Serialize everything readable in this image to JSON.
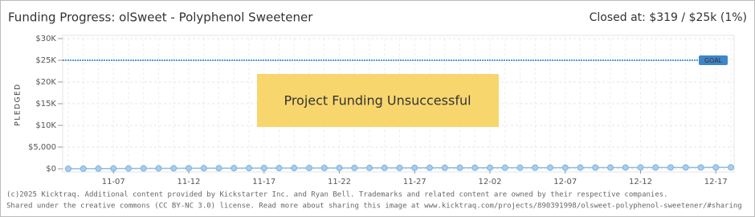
{
  "chart_data": {
    "type": "line",
    "title": "Funding Progress: olSweet - Polyphenol Sweetener",
    "subtitle": "Closed at: $319 / $25k (1%)",
    "y_label": "PLEDGED",
    "annotation": "Project Funding Unsuccessful",
    "goal": {
      "value": 25000,
      "label": "GOAL"
    },
    "notes": [
      "(c)2025 Kicktraq. Additional content provided by Kickstarter Inc. and Ryan Bell. Trademarks and related content are owned by their respective companies.",
      "Shared under the creative commons (CC BY-NC 3.0) license. Read more about sharing this image at www.kicktraq.com/projects/890391998/olsweet-polyphenol-sweetener/#sharing"
    ],
    "categories": [
      null,
      null,
      null,
      "11-07",
      null,
      null,
      null,
      null,
      "11-12",
      null,
      null,
      null,
      null,
      "11-17",
      null,
      null,
      null,
      null,
      "11-22",
      null,
      null,
      null,
      null,
      "11-27",
      null,
      null,
      null,
      null,
      "12-02",
      null,
      null,
      null,
      null,
      "12-07",
      null,
      null,
      null,
      null,
      "12-12",
      null,
      null,
      null,
      null,
      "12-17",
      null
    ],
    "values": [
      0,
      25,
      40,
      60,
      75,
      90,
      100,
      110,
      120,
      130,
      140,
      150,
      155,
      160,
      170,
      175,
      180,
      185,
      190,
      195,
      200,
      205,
      210,
      215,
      220,
      225,
      230,
      235,
      240,
      245,
      250,
      255,
      260,
      265,
      270,
      275,
      280,
      285,
      290,
      295,
      300,
      305,
      310,
      315,
      319
    ],
    "color": "#a9cdea",
    "ylim": [
      0,
      30000
    ],
    "yticks": [
      {
        "value": 0,
        "label": "$0"
      },
      {
        "value": 5000,
        "label": "$5,000"
      },
      {
        "value": 10000,
        "label": "$10K"
      },
      {
        "value": 15000,
        "label": "$15K"
      },
      {
        "value": 20000,
        "label": "$20K"
      },
      {
        "value": 25000,
        "label": "$25K"
      },
      {
        "value": 30000,
        "label": "$30K"
      }
    ],
    "grid": true
  }
}
